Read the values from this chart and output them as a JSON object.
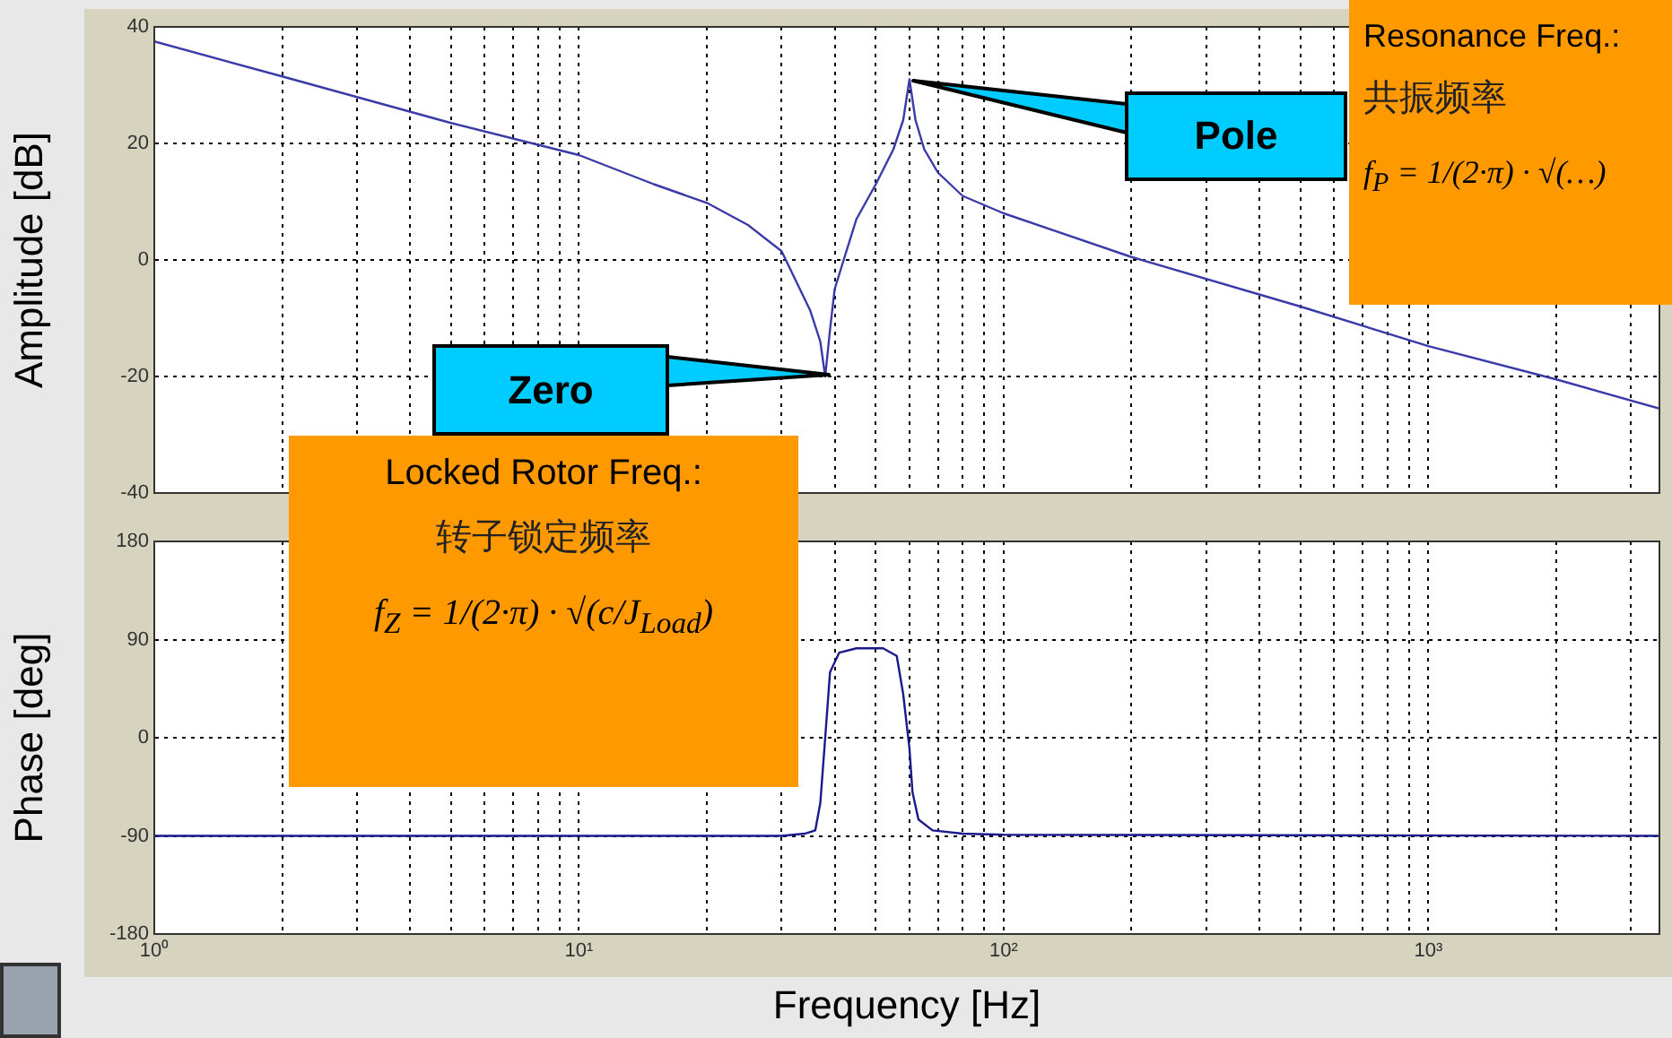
{
  "chart_data": [
    {
      "type": "line",
      "ylabel": "Amplitude [dB]",
      "log": "x",
      "grid": true,
      "legend": false,
      "tick_labels": "y",
      "marker": "none",
      "line_style": "solid",
      "xlim": [
        1,
        3500
      ],
      "ylim": [
        -40,
        40
      ],
      "yticks": [
        -40,
        -20,
        0,
        20,
        40
      ],
      "xticks": [
        {
          "value": 1,
          "label": null
        },
        {
          "value": 2,
          "label": null
        },
        {
          "value": 3,
          "label": null
        },
        {
          "value": 4,
          "label": null
        },
        {
          "value": 5,
          "label": null
        },
        {
          "value": 6,
          "label": null
        },
        {
          "value": 7,
          "label": null
        },
        {
          "value": 8,
          "label": null
        },
        {
          "value": 9,
          "label": null
        },
        {
          "value": 10,
          "label": null
        },
        {
          "value": 20,
          "label": null
        },
        {
          "value": 30,
          "label": null
        },
        {
          "value": 40,
          "label": null
        },
        {
          "value": 50,
          "label": null
        },
        {
          "value": 60,
          "label": null
        },
        {
          "value": 70,
          "label": null
        },
        {
          "value": 80,
          "label": null
        },
        {
          "value": 90,
          "label": null
        },
        {
          "value": 100,
          "label": null
        },
        {
          "value": 200,
          "label": null
        },
        {
          "value": 300,
          "label": null
        },
        {
          "value": 400,
          "label": null
        },
        {
          "value": 500,
          "label": null
        },
        {
          "value": 600,
          "label": null
        },
        {
          "value": 700,
          "label": null
        },
        {
          "value": 800,
          "label": null
        },
        {
          "value": 900,
          "label": null
        },
        {
          "value": 1000,
          "label": null
        },
        {
          "value": 2000,
          "label": null
        },
        {
          "value": 3000,
          "label": null
        }
      ],
      "x": [
        1,
        2,
        5,
        10,
        15,
        20,
        25,
        30,
        35,
        37,
        38,
        39,
        40,
        42,
        45,
        50,
        55,
        58,
        60,
        62,
        65,
        70,
        80,
        100,
        200,
        500,
        1000,
        2000,
        3500
      ],
      "series": [
        {
          "color": "#3a3aa8",
          "values": [
            37.5,
            31.5,
            23.5,
            18,
            13,
            9.8,
            6,
            1.5,
            -8.6,
            -14,
            -20,
            -12,
            -5,
            0,
            7,
            13,
            19,
            24,
            31,
            24,
            19,
            15,
            11,
            8,
            0.5,
            -8,
            -14.8,
            -20.5,
            -25.5
          ]
        }
      ],
      "annotations": [
        "Pole",
        "Zero",
        "Locked Rotor Freq.:",
        "转子锁定频率",
        "f$_{Z}$ = 1/(2·π) · √(c/J$_{Load}$)",
        "Resonance Freq.:",
        "共振频率",
        "f$_{P}$ = 1/(2·π) · √(…)"
      ]
    },
    {
      "type": "line",
      "xlabel": "Frequency [Hz]",
      "ylabel": "Phase [deg]",
      "log": "x",
      "grid": true,
      "legend": false,
      "marker": "none",
      "line_style": "solid",
      "xlim": [
        1,
        3500
      ],
      "ylim": [
        -180,
        180
      ],
      "yticks": [
        -180,
        -90,
        0,
        90,
        180
      ],
      "xticks": [
        {
          "value": 1,
          "label": "10⁰"
        },
        {
          "value": 2,
          "label": null
        },
        {
          "value": 3,
          "label": null
        },
        {
          "value": 4,
          "label": null
        },
        {
          "value": 5,
          "label": null
        },
        {
          "value": 6,
          "label": null
        },
        {
          "value": 7,
          "label": null
        },
        {
          "value": 8,
          "label": null
        },
        {
          "value": 9,
          "label": null
        },
        {
          "value": 10,
          "label": "10¹"
        },
        {
          "value": 20,
          "label": null
        },
        {
          "value": 30,
          "label": null
        },
        {
          "value": 40,
          "label": null
        },
        {
          "value": 50,
          "label": null
        },
        {
          "value": 60,
          "label": null
        },
        {
          "value": 70,
          "label": null
        },
        {
          "value": 80,
          "label": null
        },
        {
          "value": 90,
          "label": null
        },
        {
          "value": 100,
          "label": "10²"
        },
        {
          "value": 200,
          "label": null
        },
        {
          "value": 300,
          "label": null
        },
        {
          "value": 400,
          "label": null
        },
        {
          "value": 500,
          "label": null
        },
        {
          "value": 600,
          "label": null
        },
        {
          "value": 700,
          "label": null
        },
        {
          "value": 800,
          "label": null
        },
        {
          "value": 900,
          "label": null
        },
        {
          "value": 1000,
          "label": "10³"
        },
        {
          "value": 2000,
          "label": null
        },
        {
          "value": 3000,
          "label": null
        }
      ],
      "x": [
        1,
        30,
        34,
        36,
        37,
        38,
        39,
        41,
        45,
        52,
        56,
        58,
        60,
        61,
        63,
        68,
        80,
        100,
        3500
      ],
      "series": [
        {
          "color": "#1a1a8c",
          "values": [
            -90,
            -90,
            -88,
            -85,
            -60,
            0,
            60,
            78,
            82,
            82,
            75,
            40,
            -10,
            -50,
            -75,
            -85,
            -88,
            -89,
            -90
          ]
        }
      ]
    }
  ]
}
